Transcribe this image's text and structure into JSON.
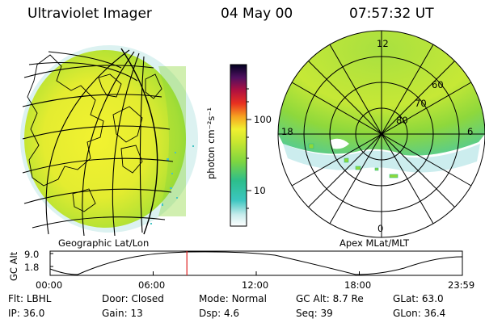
{
  "header": {
    "instrument": "Ultraviolet Imager",
    "date": "04 May 00",
    "time": "07:57:32 UT"
  },
  "colorbar": {
    "label": "photon cm⁻²s⁻¹",
    "ticks": [
      "100",
      "10"
    ]
  },
  "left_panel": {
    "caption": "Geographic Lat/Lon"
  },
  "right_panel": {
    "caption": "Apex MLat/MLT",
    "mlt_labels": [
      "12",
      "18",
      "6",
      "0"
    ],
    "lat_labels": [
      "60",
      "70",
      "80"
    ]
  },
  "altitude_plot": {
    "ylabel": "GC Alt",
    "yticks": [
      "9.0",
      "1.8"
    ],
    "xticks": [
      "00:00",
      "06:00",
      "12:00",
      "18:00",
      "23:59"
    ],
    "current_time_hours": 7.96
  },
  "info": {
    "row1": [
      {
        "label": "Flt:",
        "value": "LBHL"
      },
      {
        "label": "Door:",
        "value": "Closed"
      },
      {
        "label": "Mode:",
        "value": "Normal"
      },
      {
        "label": "GC Alt:",
        "value": "8.7 Re"
      },
      {
        "label": "GLat:",
        "value": "63.0"
      }
    ],
    "row2": [
      {
        "label": "IP:",
        "value": "36.0"
      },
      {
        "label": "Gain:",
        "value": "13"
      },
      {
        "label": "Dsp:",
        "value": "4.6"
      },
      {
        "label": "Seq:",
        "value": "39"
      },
      {
        "label": "GLon:",
        "value": "36.4"
      }
    ]
  },
  "colors": {
    "aurora_green": "#9adf3a",
    "aurora_yellow": "#e9ee32",
    "aurora_cyan": "#4cc6c8",
    "time_marker": "#e02020"
  }
}
